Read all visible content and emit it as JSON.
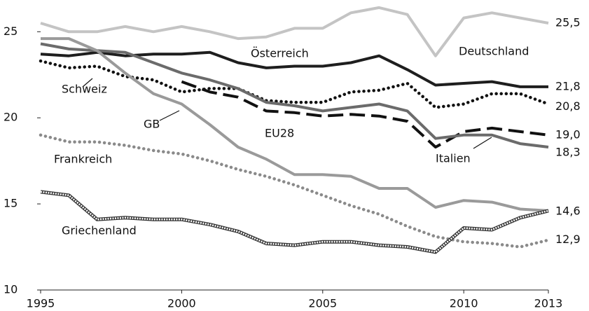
{
  "chart_data": {
    "type": "line",
    "x": [
      1995,
      1996,
      1997,
      1998,
      1999,
      2000,
      2001,
      2002,
      2003,
      2004,
      2005,
      2006,
      2007,
      2008,
      2009,
      2010,
      2011,
      2012,
      2013
    ],
    "xlim": [
      1995,
      2013
    ],
    "xticks": [
      1995,
      2000,
      2005,
      2010,
      2013
    ],
    "ylim": [
      10,
      25.5
    ],
    "yticks": [
      10,
      15,
      20,
      25
    ],
    "series": [
      {
        "name": "Deutschland",
        "color": "#c4c4c4",
        "style": "solid",
        "values": [
          25.5,
          25.0,
          25.0,
          25.3,
          25.0,
          25.3,
          25.0,
          24.6,
          24.7,
          25.2,
          25.2,
          26.1,
          26.4,
          26.0,
          23.6,
          25.8,
          26.1,
          25.8,
          25.5
        ],
        "value_labels": [
          null,
          null,
          null,
          null,
          null,
          null,
          null,
          null,
          null,
          null,
          null,
          null,
          null,
          null,
          null,
          null,
          null,
          null,
          "25,5"
        ]
      },
      {
        "name": "Österreich",
        "color": "#1e1e1e",
        "style": "solid",
        "values": [
          23.7,
          23.6,
          23.8,
          23.6,
          23.7,
          23.7,
          23.8,
          23.2,
          22.9,
          23.0,
          23.0,
          23.2,
          23.6,
          22.8,
          21.9,
          22.0,
          22.1,
          21.8,
          21.8
        ],
        "value_labels": [
          null,
          null,
          null,
          null,
          null,
          null,
          null,
          null,
          null,
          null,
          null,
          null,
          null,
          null,
          null,
          null,
          null,
          null,
          "21,8"
        ]
      },
      {
        "name": "Schweiz",
        "color": "#111111",
        "style": "dotted",
        "values": [
          23.3,
          22.9,
          23.0,
          22.4,
          22.2,
          21.5,
          21.7,
          21.7,
          21.0,
          20.9,
          20.9,
          21.5,
          21.6,
          22.0,
          20.6,
          20.8,
          21.4,
          21.4,
          20.8
        ],
        "value_labels": [
          null,
          null,
          null,
          null,
          null,
          null,
          null,
          null,
          null,
          null,
          null,
          null,
          null,
          null,
          null,
          null,
          null,
          null,
          "20,8"
        ]
      },
      {
        "name": "EU28",
        "color": "#111111",
        "style": "dashed",
        "values": [
          null,
          null,
          null,
          null,
          null,
          22.1,
          21.5,
          21.2,
          20.4,
          20.3,
          20.1,
          20.2,
          20.1,
          19.8,
          18.3,
          19.2,
          19.4,
          19.2,
          19.0
        ],
        "value_labels": [
          null,
          null,
          null,
          null,
          null,
          null,
          null,
          null,
          null,
          null,
          null,
          null,
          null,
          null,
          null,
          null,
          null,
          null,
          "19,0"
        ]
      },
      {
        "name": "Italien",
        "color": "#6b6b6b",
        "style": "solid",
        "values": [
          24.3,
          24.0,
          23.9,
          23.8,
          23.2,
          22.6,
          22.2,
          21.7,
          20.9,
          20.7,
          20.4,
          20.6,
          20.8,
          20.4,
          18.8,
          19.0,
          19.0,
          18.5,
          18.3
        ],
        "value_labels": [
          null,
          null,
          null,
          null,
          null,
          null,
          null,
          null,
          null,
          null,
          null,
          null,
          null,
          null,
          null,
          null,
          null,
          null,
          "18,3"
        ]
      },
      {
        "name": "GB",
        "color": "#9a9a9a",
        "style": "solid",
        "values": [
          24.6,
          24.6,
          23.9,
          22.6,
          21.4,
          20.8,
          19.6,
          18.3,
          17.6,
          16.7,
          16.7,
          16.6,
          15.9,
          15.9,
          14.8,
          15.2,
          15.1,
          14.7,
          14.6
        ],
        "value_labels": [
          null,
          null,
          null,
          null,
          null,
          null,
          null,
          null,
          null,
          null,
          null,
          null,
          null,
          null,
          null,
          null,
          null,
          null,
          "14,6"
        ]
      },
      {
        "name": "Frankreich",
        "color": "#8a8a8a",
        "style": "dotted",
        "values": [
          19.0,
          18.6,
          18.6,
          18.4,
          18.1,
          17.9,
          17.5,
          17.0,
          16.6,
          16.1,
          15.5,
          14.9,
          14.4,
          13.7,
          13.1,
          12.8,
          12.7,
          12.5,
          12.9
        ],
        "value_labels": [
          null,
          null,
          null,
          null,
          null,
          null,
          null,
          null,
          null,
          null,
          null,
          null,
          null,
          null,
          null,
          null,
          null,
          null,
          "12,9"
        ]
      },
      {
        "name": "Griechenland",
        "color": "#333333",
        "style": "hatched",
        "values": [
          15.7,
          15.5,
          14.1,
          14.2,
          14.1,
          14.1,
          13.8,
          13.4,
          12.7,
          12.6,
          12.8,
          12.8,
          12.6,
          12.5,
          12.2,
          13.6,
          13.5,
          14.2,
          14.6
        ]
      }
    ]
  }
}
